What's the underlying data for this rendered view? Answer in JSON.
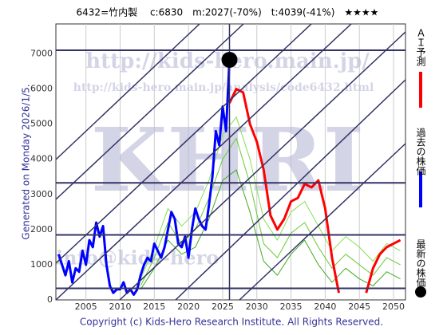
{
  "chart_data": {
    "type": "line",
    "title": "6432=竹内製　 c:6830　m:2027(-70%)　t:4039(-41%)　★★★★",
    "y_label": "Generated on Monday 2026/1/5.",
    "footer": "Copyright (c) Kids-Hero Research Institute. All Rights Reserved.",
    "watermarks": [
      "http://kids-hero.main.jp/",
      "http://kids-hero.main.jp/analysis/code6432.html",
      "KHRI",
      "info@kids-hero"
    ],
    "xlim": [
      2000.6,
      2051.75
    ],
    "ylim": [
      0,
      7850
    ],
    "xticks": [
      2005,
      2010,
      2015,
      2020,
      2025,
      2030,
      2035,
      2040,
      2045,
      2050
    ],
    "yticks": [
      0,
      1000,
      2000,
      3000,
      4000,
      5000,
      6000,
      7000
    ],
    "grid": true,
    "hlines": [
      7100,
      3330,
      1850,
      330
    ],
    "series": [
      {
        "color": "#66cc33",
        "x": [
          2013,
          2015,
          2017,
          2019,
          2021,
          2023,
          2025,
          2027,
          2029,
          2031,
          2033,
          2035,
          2037,
          2039,
          2041,
          2043,
          2045,
          2047,
          2049,
          2051
        ],
        "values": [
          400,
          1200,
          2200,
          1600,
          2000,
          2900,
          4000,
          4600,
          3300,
          1600,
          1200,
          1900,
          2200,
          1500,
          900,
          1300,
          1000,
          700,
          1200,
          1000
        ]
      },
      {
        "color": "#44aa22",
        "x": [
          2013,
          2015,
          2017,
          2019,
          2021,
          2023,
          2025,
          2027,
          2029,
          2031,
          2033,
          2035,
          2037,
          2039,
          2041,
          2043,
          2045,
          2047,
          2049,
          2051
        ],
        "values": [
          300,
          900,
          1700,
          1300,
          1500,
          2300,
          3400,
          3700,
          2500,
          1100,
          700,
          1300,
          1700,
          1000,
          500,
          900,
          600,
          400,
          800,
          600
        ]
      },
      {
        "color": "#88dd55",
        "x": [
          2013,
          2015,
          2017,
          2019,
          2021,
          2023,
          2025,
          2027,
          2029,
          2031,
          2033,
          2035,
          2037,
          2039,
          2041,
          2043,
          2045,
          2047,
          2049,
          2051
        ],
        "values": [
          600,
          1500,
          2600,
          2100,
          2500,
          3400,
          4700,
          5200,
          4000,
          2300,
          1700,
          2500,
          2800,
          2100,
          1400,
          1800,
          1500,
          1100,
          1600,
          1400
        ]
      },
      {
        "name": "過去の株価",
        "color": "#0000ff",
        "width": 3,
        "x": [
          2001,
          2002,
          2002.5,
          2003,
          2003.5,
          2004,
          2004.5,
          2005,
          2005.5,
          2006,
          2006.5,
          2007,
          2007.5,
          2008,
          2008.5,
          2009,
          2009.5,
          2010,
          2010.5,
          2011,
          2011.5,
          2012,
          2012.5,
          2013,
          2013.5,
          2014,
          2014.5,
          2015,
          2015.5,
          2016,
          2016.5,
          2017,
          2017.5,
          2018,
          2018.5,
          2019,
          2019.5,
          2020,
          2020.5,
          2021,
          2021.5,
          2022,
          2022.5,
          2023,
          2023.5,
          2024,
          2024.5,
          2025,
          2025.5,
          2026
        ],
        "values": [
          1300,
          700,
          1100,
          500,
          900,
          800,
          1400,
          1000,
          1700,
          1500,
          2200,
          1800,
          2100,
          1000,
          400,
          200,
          300,
          300,
          500,
          200,
          300,
          150,
          300,
          700,
          1000,
          1200,
          1100,
          1600,
          1400,
          1200,
          1500,
          2000,
          2500,
          2300,
          1600,
          1500,
          1800,
          1200,
          2000,
          2600,
          2300,
          2100,
          2000,
          2700,
          3500,
          4800,
          4400,
          5500,
          4800,
          6830
        ]
      },
      {
        "name": "ＡＩ予測",
        "color": "#ff0000",
        "width": 3,
        "x": [
          2026,
          2027,
          2028,
          2029,
          2030,
          2031,
          2032,
          2033,
          2034,
          2035,
          2036,
          2037,
          2038,
          2039,
          2040,
          2041,
          2042,
          2043,
          2044,
          2045,
          2046,
          2047,
          2048,
          2049,
          2050,
          2051
        ],
        "values": [
          5600,
          6000,
          5900,
          5000,
          4500,
          3700,
          2400,
          2000,
          2300,
          2800,
          2900,
          3300,
          3200,
          3400,
          2600,
          1200,
          200,
          null,
          null,
          null,
          200,
          900,
          1300,
          1500,
          1600,
          1700
        ]
      }
    ],
    "latest": {
      "name": "最新の株価",
      "x": 2026,
      "value": 6830,
      "color": "#000000"
    }
  }
}
